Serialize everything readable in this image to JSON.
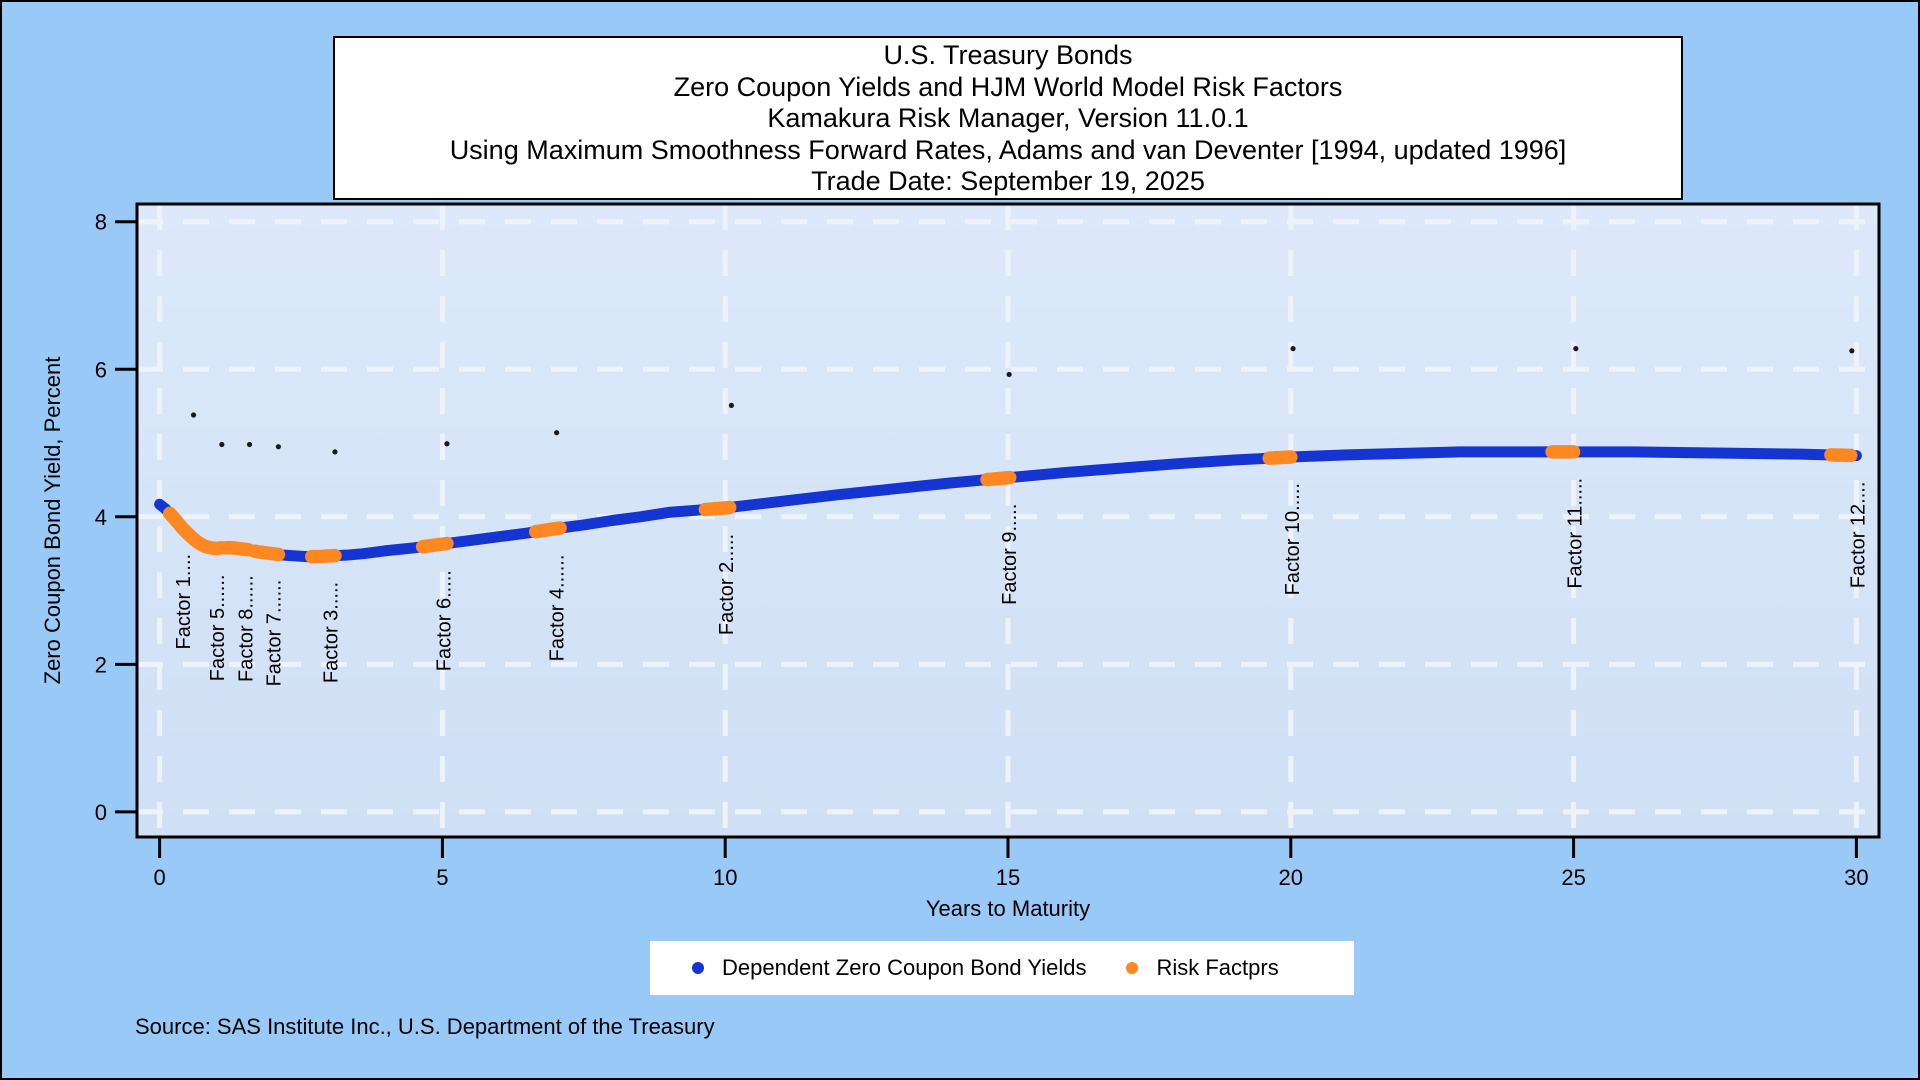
{
  "header": {
    "lines": [
      "U.S. Treasury Bonds",
      "Zero Coupon Yields and HJM World Model Risk Factors",
      "Kamakura Risk Manager, Version 11.0.1",
      "Using Maximum Smoothness Forward Rates, Adams and van Deventer [1994, updated 1996]",
      "Trade Date: September 19, 2025"
    ]
  },
  "source_note": "Source: SAS Institute Inc., U.S. Department of the Treasury",
  "colors": {
    "canvas_bg": "#99c9f7",
    "plot_bg_top": "#dde9fa",
    "plot_bg_bottom": "#cfdff5",
    "grid": "#eef3fa",
    "yield_line": "#1535d3",
    "risk_factor": "#fd8821",
    "leader_dot": "#1a1a1a",
    "frame": "#000000",
    "text": "#000000",
    "panel_bg": "#ffffff"
  },
  "chart_data": {
    "type": "line",
    "title": "U.S. Treasury Bonds — Zero Coupon Yields and HJM World Model Risk Factors",
    "xlabel": "Years to Maturity",
    "ylabel": "Zero Coupon Bond Yield, Percent",
    "x_ticks": [
      0,
      5,
      10,
      15,
      20,
      25,
      30
    ],
    "y_ticks": [
      0,
      2,
      4,
      6,
      8
    ],
    "xlim": [
      -0.4,
      30.4
    ],
    "ylim": [
      -0.34,
      8.24
    ],
    "grid": "dashed",
    "legend_position": "bottom",
    "series": [
      {
        "name": "Dependent Zero Coupon Bond Yields",
        "type": "dense-dot-line",
        "color_key": "yield_line",
        "points": [
          [
            0.0,
            4.17
          ],
          [
            0.1,
            4.11
          ],
          [
            0.2,
            4.03
          ],
          [
            0.3,
            3.94
          ],
          [
            0.4,
            3.85
          ],
          [
            0.5,
            3.77
          ],
          [
            0.6,
            3.7
          ],
          [
            0.7,
            3.64
          ],
          [
            0.8,
            3.6
          ],
          [
            0.9,
            3.58
          ],
          [
            1.0,
            3.57
          ],
          [
            1.1,
            3.58
          ],
          [
            1.2,
            3.58
          ],
          [
            1.3,
            3.58
          ],
          [
            1.4,
            3.57
          ],
          [
            1.5,
            3.56
          ],
          [
            1.6,
            3.55
          ],
          [
            1.7,
            3.53
          ],
          [
            1.8,
            3.52
          ],
          [
            2.0,
            3.5
          ],
          [
            2.2,
            3.48
          ],
          [
            2.4,
            3.47
          ],
          [
            2.6,
            3.46
          ],
          [
            2.8,
            3.46
          ],
          [
            3.0,
            3.47
          ],
          [
            3.3,
            3.48
          ],
          [
            3.6,
            3.5
          ],
          [
            4.0,
            3.54
          ],
          [
            4.5,
            3.58
          ],
          [
            5.0,
            3.63
          ],
          [
            5.5,
            3.68
          ],
          [
            6.0,
            3.73
          ],
          [
            6.5,
            3.78
          ],
          [
            7.0,
            3.84
          ],
          [
            7.5,
            3.89
          ],
          [
            8.0,
            3.95
          ],
          [
            8.5,
            4.0
          ],
          [
            9.0,
            4.06
          ],
          [
            9.5,
            4.09
          ],
          [
            10.0,
            4.12
          ],
          [
            11.0,
            4.21
          ],
          [
            12.0,
            4.3
          ],
          [
            13.0,
            4.38
          ],
          [
            14.0,
            4.46
          ],
          [
            15.0,
            4.53
          ],
          [
            16.0,
            4.6
          ],
          [
            17.0,
            4.66
          ],
          [
            18.0,
            4.72
          ],
          [
            19.0,
            4.77
          ],
          [
            20.0,
            4.81
          ],
          [
            21.0,
            4.84
          ],
          [
            22.0,
            4.86
          ],
          [
            23.0,
            4.88
          ],
          [
            24.0,
            4.88
          ],
          [
            25.0,
            4.88
          ],
          [
            26.0,
            4.88
          ],
          [
            27.0,
            4.87
          ],
          [
            28.0,
            4.86
          ],
          [
            29.0,
            4.85
          ],
          [
            30.0,
            4.83
          ]
        ]
      },
      {
        "name": "Risk Factprs",
        "type": "segments-on-curve",
        "color_key": "risk_factor"
      }
    ],
    "factor_labels": [
      {
        "label": "Factor 1....",
        "year": 0.4,
        "segment": [
          0.18,
          0.62
        ],
        "leader_dot": [
          0.6,
          5.38
        ]
      },
      {
        "label": "Factor 5......",
        "year": 1.0,
        "segment": [
          0.66,
          1.1
        ],
        "leader_dot": [
          1.1,
          4.98
        ]
      },
      {
        "label": "Factor 8......",
        "year": 1.5,
        "segment": [
          1.18,
          1.57
        ],
        "leader_dot": [
          1.59,
          4.98
        ]
      },
      {
        "label": "Factor 7......",
        "year": 2.0,
        "segment": [
          1.68,
          2.1
        ],
        "leader_dot": [
          2.1,
          4.95
        ]
      },
      {
        "label": "Factor 3.....",
        "year": 3.0,
        "segment": [
          2.69,
          3.1
        ],
        "leader_dot": [
          3.1,
          4.88
        ]
      },
      {
        "label": "Factor 6.....",
        "year": 5.0,
        "segment": [
          4.65,
          5.08
        ],
        "leader_dot": [
          5.08,
          4.99
        ]
      },
      {
        "label": "Factor 4......",
        "year": 7.0,
        "segment": [
          6.65,
          7.08
        ],
        "leader_dot": [
          7.02,
          5.14
        ]
      },
      {
        "label": "Factor 2.....",
        "year": 10.0,
        "segment": [
          9.65,
          10.08
        ],
        "leader_dot": [
          10.11,
          5.51
        ]
      },
      {
        "label": "Factor 9.....",
        "year": 15.0,
        "segment": [
          14.63,
          15.03
        ],
        "leader_dot": [
          15.02,
          5.93
        ]
      },
      {
        "label": "Factor 10.....",
        "year": 20.0,
        "segment": [
          19.62,
          20.0
        ],
        "leader_dot": [
          20.04,
          6.28
        ]
      },
      {
        "label": "Factor 11.....",
        "year": 25.0,
        "segment": [
          24.62,
          25.0
        ],
        "leader_dot": [
          25.04,
          6.28
        ]
      },
      {
        "label": "Factor 12....",
        "year": 30.0,
        "segment": [
          29.55,
          29.9
        ],
        "leader_dot": [
          29.92,
          6.25
        ]
      }
    ]
  }
}
